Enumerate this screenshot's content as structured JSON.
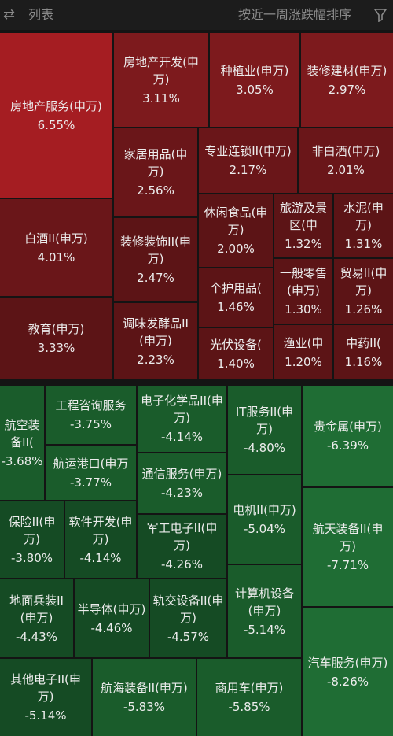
{
  "header": {
    "view_label": "列表",
    "sort_label": "按近一周涨跌幅排序",
    "switch_icon": "swap-arrows-icon",
    "filter_icon": "filter-icon"
  },
  "colors": {
    "background": "#141414",
    "header_bg": "#1c1c1c",
    "up_strong": "#a51d22",
    "up_mid": "#7d1a1d",
    "up_dark": "#6a1619",
    "up_darker": "#5c1416",
    "down_mid": "#1f6d34",
    "down_dark": "#1a5c2b",
    "down_darker": "#154b24"
  },
  "tiles": [
    {
      "name": "房地产服务(申万)",
      "change": "6.55%"
    },
    {
      "name": "房地产开发(申万)",
      "change": "3.11%"
    },
    {
      "name": "种植业(申万)",
      "change": "3.05%"
    },
    {
      "name": "装修建材(申万)",
      "change": "2.97%"
    },
    {
      "name": "家居用品(申万)",
      "change": "2.56%"
    },
    {
      "name": "专业连锁II(申万)",
      "change": "2.17%"
    },
    {
      "name": "非白酒(申万)",
      "change": "2.01%"
    },
    {
      "name": "白酒II(申万)",
      "change": "4.01%"
    },
    {
      "name": "装修装饰II(申万)",
      "change": "2.47%"
    },
    {
      "name": "休闲食品(申万)",
      "change": "2.00%"
    },
    {
      "name": "旅游及景区(申",
      "change": "1.32%"
    },
    {
      "name": "水泥(申万)",
      "change": "1.31%"
    },
    {
      "name": "个护用品(",
      "change": "1.46%"
    },
    {
      "name": "一般零售(申万)",
      "change": "1.30%"
    },
    {
      "name": "贸易II(申万)",
      "change": "1.26%"
    },
    {
      "name": "教育(申万)",
      "change": "3.33%"
    },
    {
      "name": "调味发酵品II(申万)",
      "change": "2.23%"
    },
    {
      "name": "光伏设备(",
      "change": "1.40%"
    },
    {
      "name": "渔业(申",
      "change": "1.20%"
    },
    {
      "name": "中药II(",
      "change": "1.16%"
    },
    {
      "name": "航空装备II(",
      "change": "-3.68%"
    },
    {
      "name": "工程咨询服务",
      "change": "-3.75%"
    },
    {
      "name": "航运港口(申万",
      "change": "-3.77%"
    },
    {
      "name": "电子化学品II(申万)",
      "change": "-4.14%"
    },
    {
      "name": "通信服务(申万)",
      "change": "-4.23%"
    },
    {
      "name": "IT服务II(申万)",
      "change": "-4.80%"
    },
    {
      "name": "贵金属(申万)",
      "change": "-6.39%"
    },
    {
      "name": "保险II(申万)",
      "change": "-3.80%"
    },
    {
      "name": "软件开发(申万)",
      "change": "-4.14%"
    },
    {
      "name": "军工电子II(申万)",
      "change": "-4.26%"
    },
    {
      "name": "电机II(申万)",
      "change": "-5.04%"
    },
    {
      "name": "航天装备II(申万)",
      "change": "-7.71%"
    },
    {
      "name": "地面兵装II(申万)",
      "change": "-4.43%"
    },
    {
      "name": "半导体(申万)",
      "change": "-4.46%"
    },
    {
      "name": "轨交设备II(申万)",
      "change": "-4.57%"
    },
    {
      "name": "计算机设备(申万)",
      "change": "-5.14%"
    },
    {
      "name": "其他电子II(申万)",
      "change": "-5.14%"
    },
    {
      "name": "航海装备II(申万)",
      "change": "-5.83%"
    },
    {
      "name": "商用车(申万)",
      "change": "-5.85%"
    },
    {
      "name": "汽车服务(申万)",
      "change": "-8.26%"
    }
  ]
}
